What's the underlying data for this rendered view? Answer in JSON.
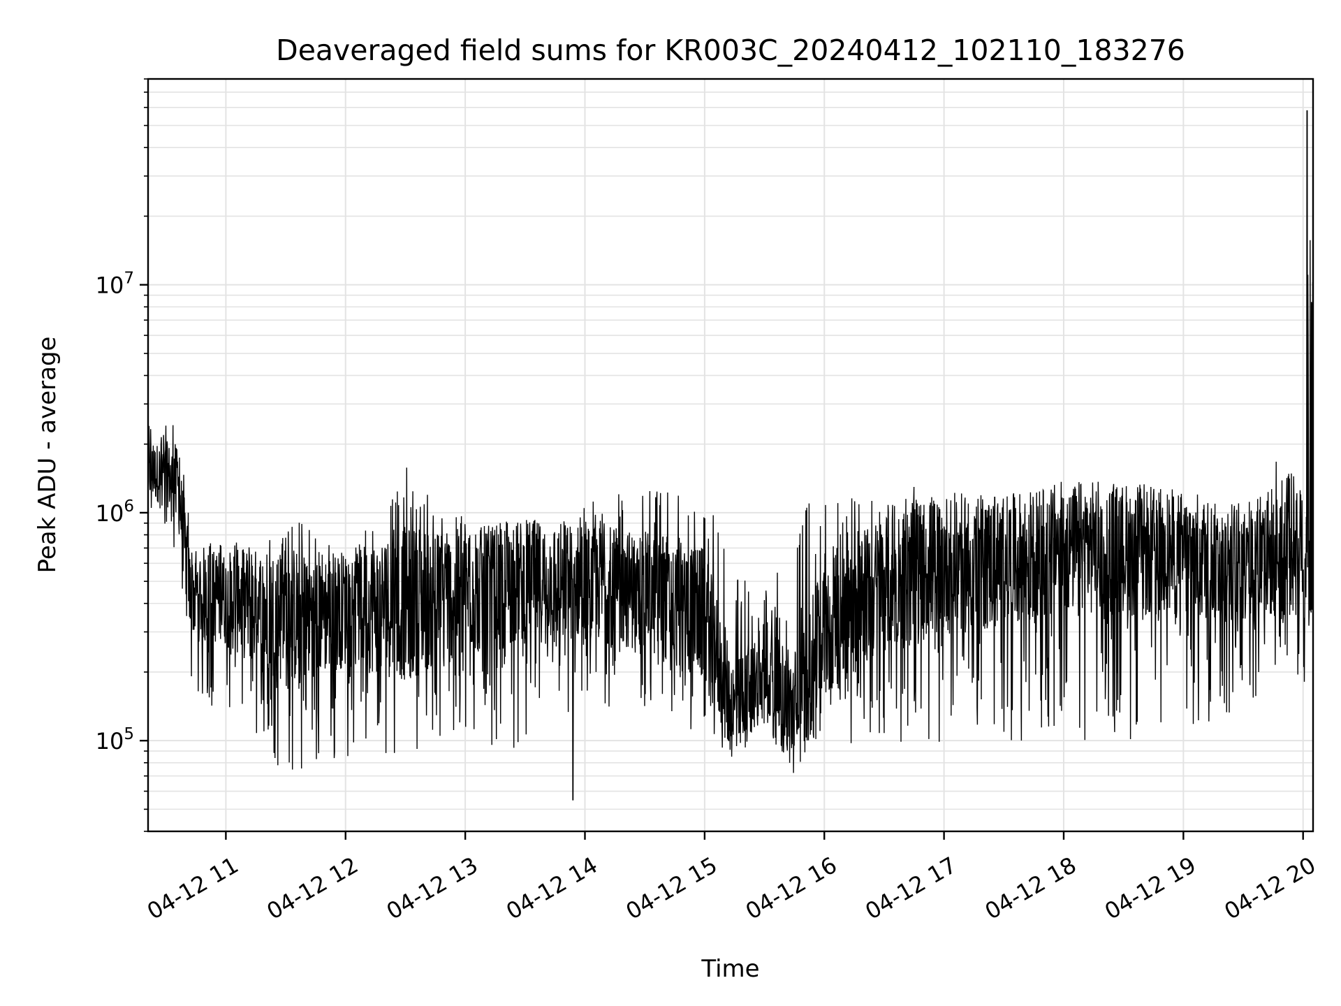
{
  "chart_data": {
    "type": "line",
    "title": "Deaveraged field sums for KR003C_20240412_102110_183276",
    "xlabel": "Time",
    "ylabel": "Peak ADU - average",
    "x_scale": "time",
    "y_scale": "log",
    "xlim": [
      "2024-04-12 10:21",
      "2024-04-12 20:05"
    ],
    "ylim": [
      40000,
      80000000
    ],
    "x_ticks": [
      "04-12 11",
      "04-12 12",
      "04-12 13",
      "04-12 14",
      "04-12 15",
      "04-12 16",
      "04-12 17",
      "04-12 18",
      "04-12 19",
      "04-12 20"
    ],
    "y_ticks": [
      {
        "base": "10",
        "exp": "5",
        "value": 100000
      },
      {
        "base": "10",
        "exp": "6",
        "value": 1000000
      },
      {
        "base": "10",
        "exp": "7",
        "value": 10000000
      }
    ],
    "grid": true,
    "line_color": "#000000",
    "series": [
      {
        "x": [
          "2024-04-12 10:21",
          "2024-04-12 10:30",
          "2024-04-12 10:36",
          "2024-04-12 10:42",
          "2024-04-12 11:00",
          "2024-04-12 11:30",
          "2024-04-12 12:00",
          "2024-04-12 12:30",
          "2024-04-12 13:00",
          "2024-04-12 13:30",
          "2024-04-12 14:00",
          "2024-04-12 14:30",
          "2024-04-12 15:00",
          "2024-04-12 15:15",
          "2024-04-12 15:30",
          "2024-04-12 15:45",
          "2024-04-12 16:00",
          "2024-04-12 16:30",
          "2024-04-12 17:00",
          "2024-04-12 17:30",
          "2024-04-12 18:00",
          "2024-04-12 18:30",
          "2024-04-12 19:00",
          "2024-04-12 19:30",
          "2024-04-12 20:00",
          "2024-04-12 20:05"
        ],
        "min": [
          900000,
          800000,
          600000,
          150000,
          130000,
          70000,
          80000,
          90000,
          100000,
          90000,
          130000,
          140000,
          100000,
          85000,
          100000,
          90000,
          95000,
          100000,
          95000,
          100000,
          100000,
          100000,
          100000,
          120000,
          150000,
          600000
        ],
        "max": [
          2500000,
          2600000,
          2500000,
          900000,
          750000,
          1000000,
          700000,
          1600000,
          1000000,
          900000,
          1100000,
          1300000,
          1200000,
          600000,
          450000,
          1100000,
          1200000,
          1300000,
          1300000,
          1200000,
          1200000,
          1200000,
          1100000,
          1100000,
          2500000,
          60000000
        ],
        "median": [
          1500000,
          1500000,
          1300000,
          450000,
          420000,
          350000,
          380000,
          400000,
          450000,
          500000,
          500000,
          450000,
          350000,
          130000,
          200000,
          130000,
          300000,
          500000,
          600000,
          600000,
          700000,
          700000,
          650000,
          600000,
          750000,
          800000
        ]
      }
    ],
    "annotations": [
      {
        "x": "2024-04-12 13:54",
        "y": 55000,
        "label": ""
      },
      {
        "x": "2024-04-12 20:02",
        "y": 58000000,
        "label": ""
      }
    ]
  }
}
